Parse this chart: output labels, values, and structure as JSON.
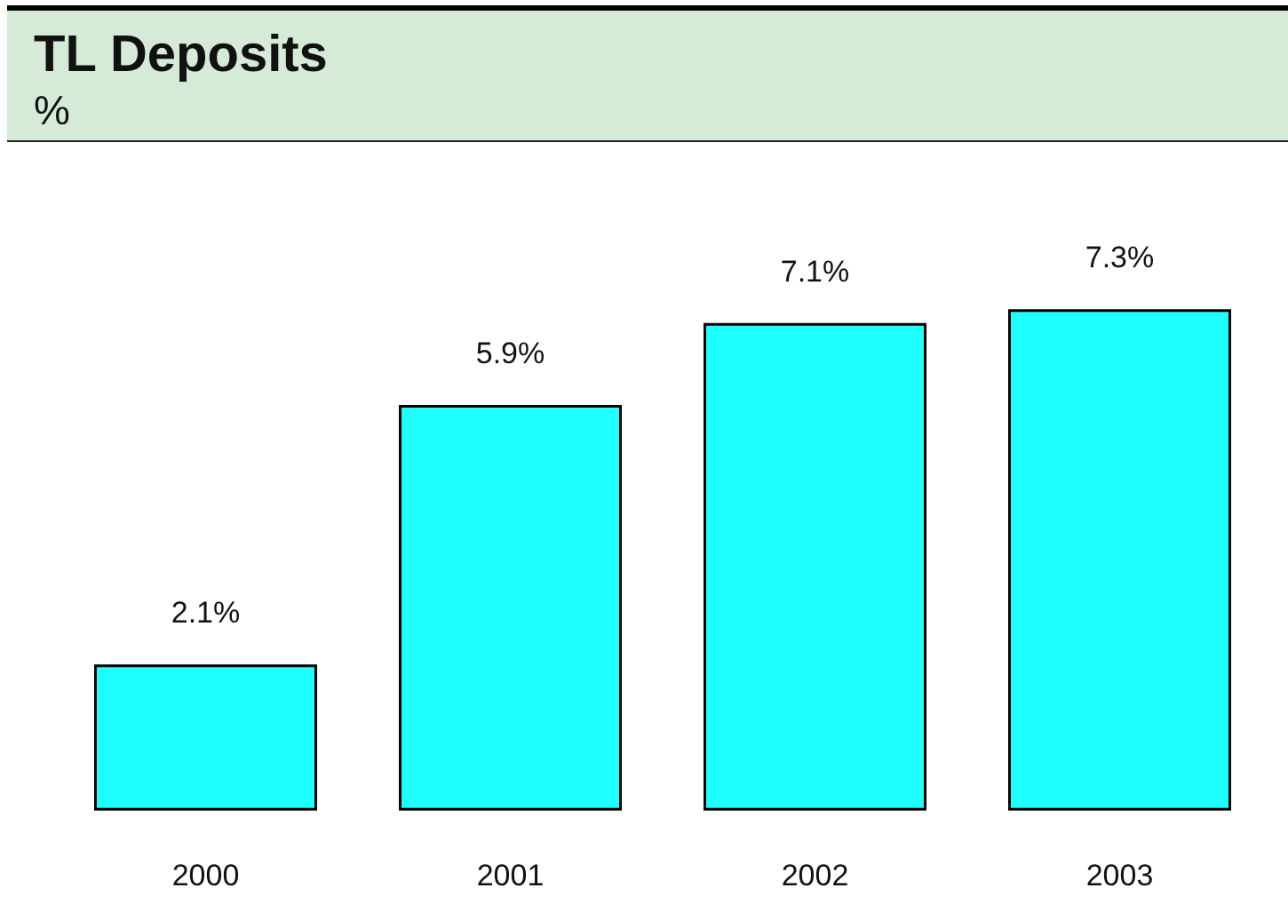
{
  "chart_data": {
    "type": "bar",
    "title": "TL Deposits",
    "subtitle": "%",
    "categories": [
      "2000",
      "2001",
      "2002",
      "2003"
    ],
    "values": [
      2.1,
      5.9,
      7.1,
      7.3
    ],
    "color": "#1effff",
    "value_labels": [
      "2.1%",
      "5.9%",
      "7.1%",
      "7.3%"
    ],
    "tick_labels": "x",
    "grid": false,
    "legend": false
  }
}
